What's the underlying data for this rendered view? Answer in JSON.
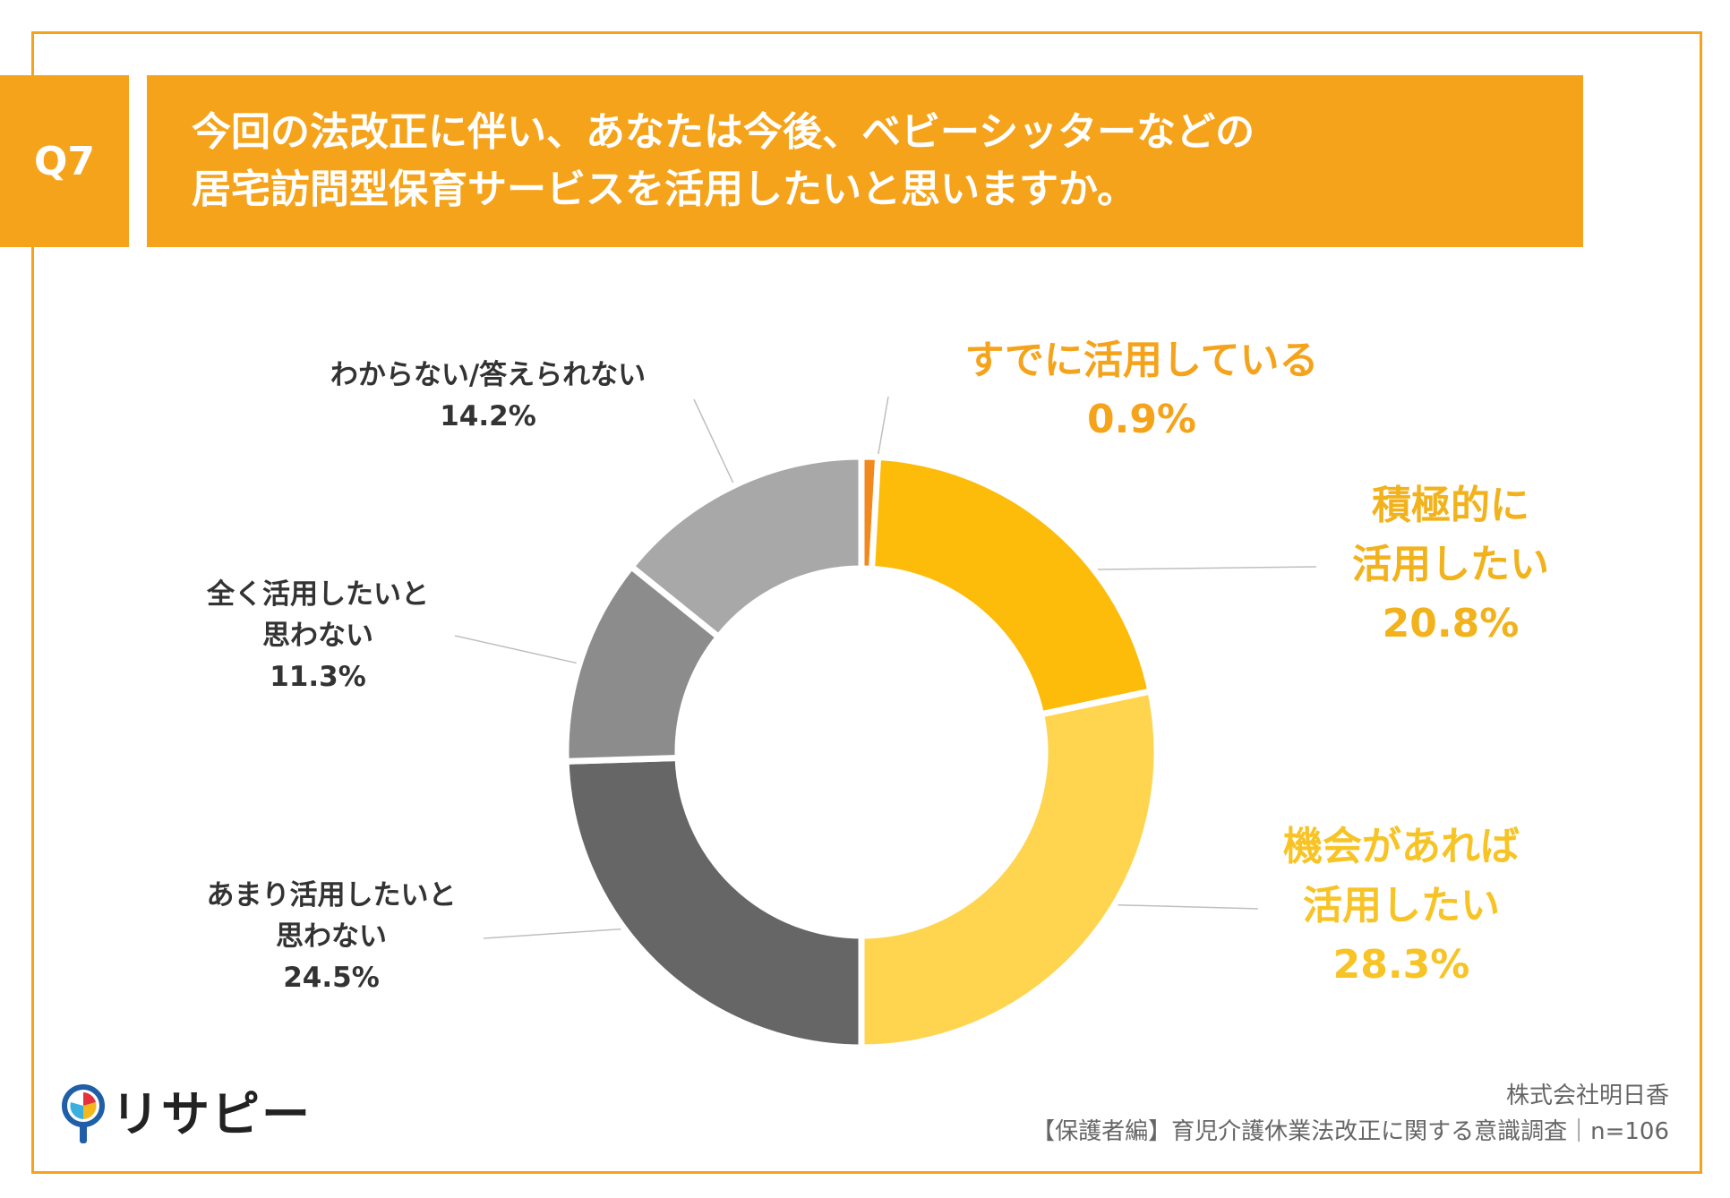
{
  "question": {
    "number": "Q7",
    "lines": [
      "今回の法改正に伴い、あなたは今後、ベビーシッターなどの",
      "居宅訪問型保育サービスを活用したいと思いますか。"
    ]
  },
  "chart_data": {
    "type": "pie",
    "donut": true,
    "categories": [
      "すでに活用している",
      "積極的に活用したい",
      "機会があれば活用したい",
      "あまり活用したいと思わない",
      "全く活用したいと思わない",
      "わからない/答えられない"
    ],
    "values": [
      0.9,
      20.8,
      28.3,
      24.5,
      11.3,
      14.2
    ],
    "unit": "%",
    "colors": [
      "#F2891C",
      "#FDBB0A",
      "#FFD54F",
      "#666666",
      "#8C8C8C",
      "#A8A8A8"
    ],
    "labels": [
      {
        "lines": [
          "すでに活用している"
        ],
        "value": "0.9%"
      },
      {
        "lines": [
          "積極的に",
          "活用したい"
        ],
        "value": "20.8%"
      },
      {
        "lines": [
          "機会があれば",
          "活用したい"
        ],
        "value": "28.3%"
      },
      {
        "lines": [
          "あまり活用したいと",
          "思わない"
        ],
        "value": "24.5%"
      },
      {
        "lines": [
          "全く活用したいと",
          "思わない"
        ],
        "value": "11.3%"
      },
      {
        "lines": [
          "わからない/答えられない"
        ],
        "value": "14.2%"
      }
    ]
  },
  "footer": {
    "company": "株式会社明日香",
    "survey": "【保護者編】育児介護休業法改正に関する意識調査｜n=106"
  },
  "logo": {
    "text": "リサピー",
    "icon": "magnifier-pin-icon"
  }
}
